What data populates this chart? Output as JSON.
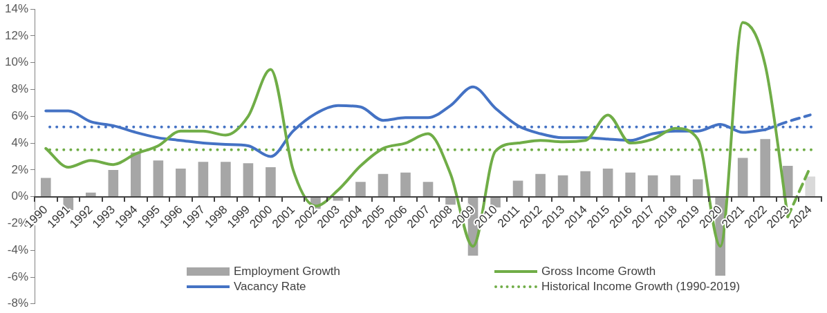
{
  "chart_data": {
    "type": "line",
    "categories": [
      "1990",
      "1991",
      "1992",
      "1993",
      "1994",
      "1995",
      "1996",
      "1997",
      "1998",
      "1999",
      "2000",
      "2001",
      "2002",
      "2003",
      "2004",
      "2005",
      "2006",
      "2007",
      "2008",
      "2009",
      "2010",
      "2011",
      "2012",
      "2013",
      "2014",
      "2015",
      "2016",
      "2017",
      "2018",
      "2019",
      "2020",
      "2021",
      "2022",
      "2023",
      "2024"
    ],
    "series": [
      {
        "name": "Employment Growth",
        "type": "bar",
        "color": "#a6a6a6",
        "colors": [
          "#a6a6a6",
          "#a6a6a6",
          "#a6a6a6",
          "#a6a6a6",
          "#a6a6a6",
          "#a6a6a6",
          "#a6a6a6",
          "#a6a6a6",
          "#a6a6a6",
          "#a6a6a6",
          "#a6a6a6",
          "#a6a6a6",
          "#a6a6a6",
          "#a6a6a6",
          "#a6a6a6",
          "#a6a6a6",
          "#a6a6a6",
          "#a6a6a6",
          "#a6a6a6",
          "#a6a6a6",
          "#a6a6a6",
          "#a6a6a6",
          "#a6a6a6",
          "#a6a6a6",
          "#a6a6a6",
          "#a6a6a6",
          "#a6a6a6",
          "#a6a6a6",
          "#a6a6a6",
          "#a6a6a6",
          "#a6a6a6",
          "#a6a6a6",
          "#a6a6a6",
          "#a6a6a6",
          "#d9d9d9"
        ],
        "values": [
          1.4,
          -1.0,
          0.3,
          2.0,
          3.3,
          2.7,
          2.1,
          2.6,
          2.6,
          2.5,
          2.2,
          0,
          -0.9,
          -0.3,
          1.1,
          1.7,
          1.8,
          1.1,
          -0.6,
          -4.4,
          -0.8,
          1.2,
          1.7,
          1.6,
          1.9,
          2.1,
          1.8,
          1.6,
          1.6,
          1.3,
          -5.9,
          2.9,
          4.3,
          2.3,
          1.5
        ]
      },
      {
        "name": "Gross Income Growth",
        "color": "#70ad47",
        "line_style": "solid",
        "values": [
          3.6,
          2.2,
          2.7,
          2.4,
          3.2,
          3.8,
          4.9,
          4.9,
          4.6,
          6.0,
          9.5,
          2.0,
          -0.7,
          0.5,
          2.3,
          3.6,
          4.0,
          4.7,
          1.7,
          -3.7,
          3.4,
          4.0,
          4.2,
          4.1,
          4.2,
          6.1,
          4.0,
          4.3,
          5.1,
          4.3,
          -3.7,
          13.0,
          9.8,
          -1.5,
          null
        ]
      },
      {
        "name": "Vacancy Rate",
        "color": "#4472c4",
        "line_style": "solid",
        "values": [
          6.4,
          6.4,
          5.6,
          5.3,
          4.8,
          4.4,
          4.2,
          4.0,
          3.9,
          3.8,
          3.0,
          4.9,
          6.2,
          6.8,
          6.7,
          5.7,
          5.9,
          5.9,
          6.8,
          8.2,
          6.6,
          5.3,
          4.7,
          4.4,
          4.4,
          4.3,
          4.2,
          4.7,
          4.9,
          4.9,
          5.4,
          4.8,
          5.0,
          null,
          null
        ]
      },
      {
        "color": "#70ad47",
        "line_style": "dashed",
        "values": [
          null,
          null,
          null,
          null,
          null,
          null,
          null,
          null,
          null,
          null,
          null,
          null,
          null,
          null,
          null,
          null,
          null,
          null,
          null,
          null,
          null,
          null,
          null,
          null,
          null,
          null,
          null,
          null,
          null,
          null,
          null,
          null,
          null,
          -1.5,
          2.2
        ]
      },
      {
        "color": "#4472c4",
        "line_style": "dashed",
        "values": [
          null,
          null,
          null,
          null,
          null,
          null,
          null,
          null,
          null,
          null,
          null,
          null,
          null,
          null,
          null,
          null,
          null,
          null,
          null,
          null,
          null,
          null,
          null,
          null,
          null,
          null,
          null,
          null,
          null,
          null,
          null,
          null,
          5.0,
          5.6,
          6.1
        ]
      }
    ],
    "ref_lines": [
      {
        "axis": "y",
        "value": 5.2,
        "color": "#4472c4",
        "line_style": "dotted"
      },
      {
        "axis": "y",
        "value": 3.5,
        "color": "#70ad47",
        "line_style": "dotted",
        "label": "Historical Income Growth (1990-2019)"
      }
    ],
    "ylim": [
      -8,
      14
    ],
    "yticks": [
      {
        "value": -8,
        "label": "-8%"
      },
      {
        "value": -6,
        "label": "-6%"
      },
      {
        "value": -4,
        "label": "-4%"
      },
      {
        "value": -2,
        "label": "-2%"
      },
      {
        "value": 0,
        "label": "0%"
      },
      {
        "value": 2,
        "label": "2%"
      },
      {
        "value": 4,
        "label": "4%"
      },
      {
        "value": 6,
        "label": "6%"
      },
      {
        "value": 8,
        "label": "8%"
      },
      {
        "value": 10,
        "label": "10%"
      },
      {
        "value": 12,
        "label": "12%"
      },
      {
        "value": 14,
        "label": "14%"
      }
    ],
    "legend": "bottom"
  }
}
